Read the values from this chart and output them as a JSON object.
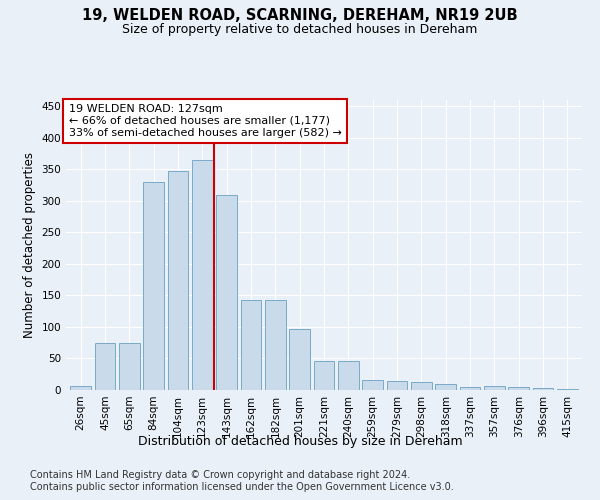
{
  "title1": "19, WELDEN ROAD, SCARNING, DEREHAM, NR19 2UB",
  "title2": "Size of property relative to detached houses in Dereham",
  "xlabel": "Distribution of detached houses by size in Dereham",
  "ylabel": "Number of detached properties",
  "categories": [
    "26sqm",
    "45sqm",
    "65sqm",
    "84sqm",
    "104sqm",
    "123sqm",
    "143sqm",
    "162sqm",
    "182sqm",
    "201sqm",
    "221sqm",
    "240sqm",
    "259sqm",
    "279sqm",
    "298sqm",
    "318sqm",
    "337sqm",
    "357sqm",
    "376sqm",
    "396sqm",
    "415sqm"
  ],
  "values": [
    7,
    75,
    75,
    330,
    348,
    365,
    310,
    143,
    143,
    97,
    46,
    46,
    16,
    14,
    12,
    10,
    5,
    6,
    5,
    3,
    2
  ],
  "bar_color": "#c9daea",
  "bar_edge_color": "#7aaac8",
  "bar_linewidth": 0.7,
  "vline_x": 5.5,
  "vline_color": "#cc0000",
  "annotation_line1": "19 WELDEN ROAD: 127sqm",
  "annotation_line2": "← 66% of detached houses are smaller (1,177)",
  "annotation_line3": "33% of semi-detached houses are larger (582) →",
  "annotation_box_color": "#ffffff",
  "annotation_box_edge": "#cc0000",
  "annotation_fontsize": 8,
  "ylim": [
    0,
    460
  ],
  "yticks": [
    0,
    50,
    100,
    150,
    200,
    250,
    300,
    350,
    400,
    450
  ],
  "background_color": "#eaf0f8",
  "grid_color": "#ffffff",
  "footer1": "Contains HM Land Registry data © Crown copyright and database right 2024.",
  "footer2": "Contains public sector information licensed under the Open Government Licence v3.0.",
  "title1_fontsize": 10.5,
  "title2_fontsize": 9,
  "xlabel_fontsize": 9,
  "ylabel_fontsize": 8.5,
  "tick_fontsize": 7.5,
  "footer_fontsize": 7
}
